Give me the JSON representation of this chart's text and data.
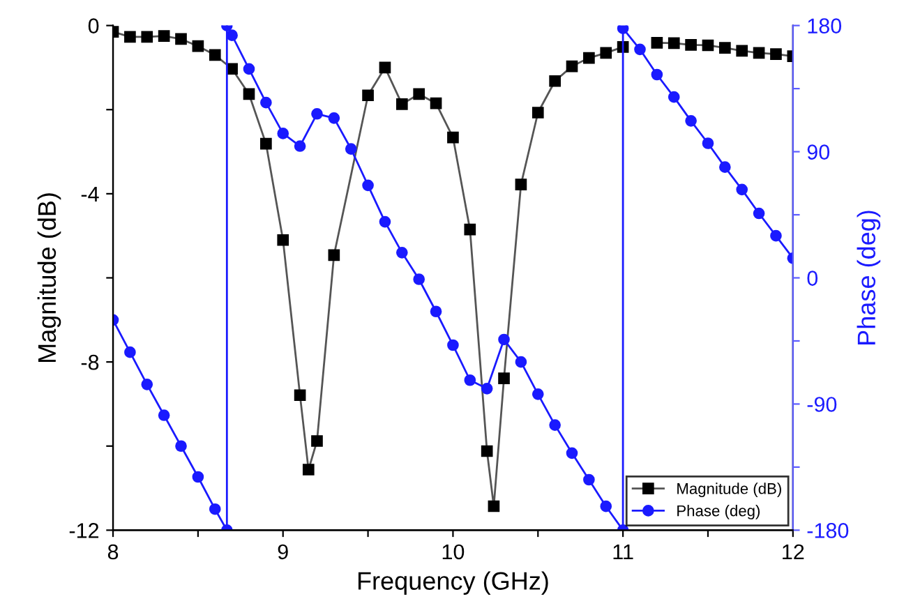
{
  "chart_data": {
    "type": "line",
    "xlabel": "Frequency (GHz)",
    "ylabel": "Magnitude (dB)",
    "y2label": "Phase (deg)",
    "xlim": [
      8,
      12
    ],
    "xticks": [
      8,
      {
        "value": 8.5,
        "label": null
      },
      9,
      {
        "value": 9.5,
        "label": null
      },
      10,
      {
        "value": 10.5,
        "label": null
      },
      11,
      {
        "value": 11.5,
        "label": null
      },
      12
    ],
    "ylim": [
      -12,
      0
    ],
    "yticks": [
      -12,
      {
        "value": -10,
        "label": null
      },
      -8,
      {
        "value": -6,
        "label": null
      },
      -4,
      {
        "value": -2,
        "label": null
      },
      0
    ],
    "y2lim": [
      -180,
      180
    ],
    "y2ticks": [
      -180,
      {
        "value": -135,
        "label": null
      },
      -90,
      {
        "value": -45,
        "label": null
      },
      0,
      {
        "value": 45,
        "label": null
      },
      90,
      {
        "value": 135,
        "label": null
      },
      180
    ],
    "legend": "bottom right",
    "grid": false,
    "series": [
      {
        "name": "Magnitude (dB)",
        "color": "#000000",
        "marker": "square",
        "axis": "y",
        "x": [
          8.0,
          8.1,
          8.2,
          8.3,
          8.4,
          8.5,
          8.6,
          8.7,
          8.8,
          8.9,
          9.0,
          9.1,
          9.15,
          9.2,
          9.3,
          9.5,
          9.6,
          9.7,
          9.8,
          9.9,
          10.0,
          10.1,
          10.2,
          10.24,
          10.3,
          10.4,
          10.5,
          10.6,
          10.7,
          10.8,
          10.9,
          11.0,
          11.1,
          11.2,
          11.3,
          11.4,
          11.5,
          11.6,
          11.7,
          11.8,
          11.9,
          12.0
        ],
        "values": [
          -0.15,
          -0.27,
          -0.27,
          -0.25,
          -0.32,
          -0.49,
          -0.7,
          -1.03,
          -1.63,
          -2.81,
          -5.1,
          -8.79,
          -10.56,
          -9.88,
          -5.46,
          -1.66,
          -1.0,
          -1.87,
          -1.63,
          -1.85,
          -2.66,
          -4.85,
          -10.12,
          -11.43,
          -8.39,
          -3.78,
          -2.07,
          -1.32,
          -0.97,
          -0.77,
          -0.65,
          -0.51,
          null,
          -0.41,
          -0.42,
          -0.46,
          -0.47,
          -0.53,
          -0.6,
          -0.65,
          -0.68,
          -0.73
        ]
      },
      {
        "name": "Phase (deg)",
        "color": "#1a1aff",
        "marker": "circle",
        "axis": "y2",
        "x": [
          8.0,
          8.1,
          8.2,
          8.3,
          8.4,
          8.5,
          8.6,
          8.67,
          8.67,
          8.7,
          8.8,
          8.9,
          9.0,
          9.1,
          9.2,
          9.3,
          9.4,
          9.5,
          9.6,
          9.7,
          9.8,
          9.9,
          10.0,
          10.1,
          10.2,
          10.3,
          10.4,
          10.5,
          10.6,
          10.7,
          10.8,
          10.9,
          11.0,
          11.0,
          11.1,
          11.2,
          11.3,
          11.4,
          11.5,
          11.6,
          11.7,
          11.8,
          11.9,
          12.0
        ],
        "values": [
          -30,
          -53,
          -76,
          -98,
          -120,
          -142,
          -165,
          -180,
          180,
          173,
          149,
          125,
          103,
          94,
          117,
          114,
          92,
          66,
          40,
          18,
          -1,
          -24,
          -48,
          -73,
          -79,
          -44,
          -60,
          -83,
          -105,
          -125,
          -144,
          -163,
          -180,
          178,
          163,
          145,
          129,
          112,
          96,
          79,
          63,
          46,
          30,
          14
        ]
      }
    ]
  }
}
